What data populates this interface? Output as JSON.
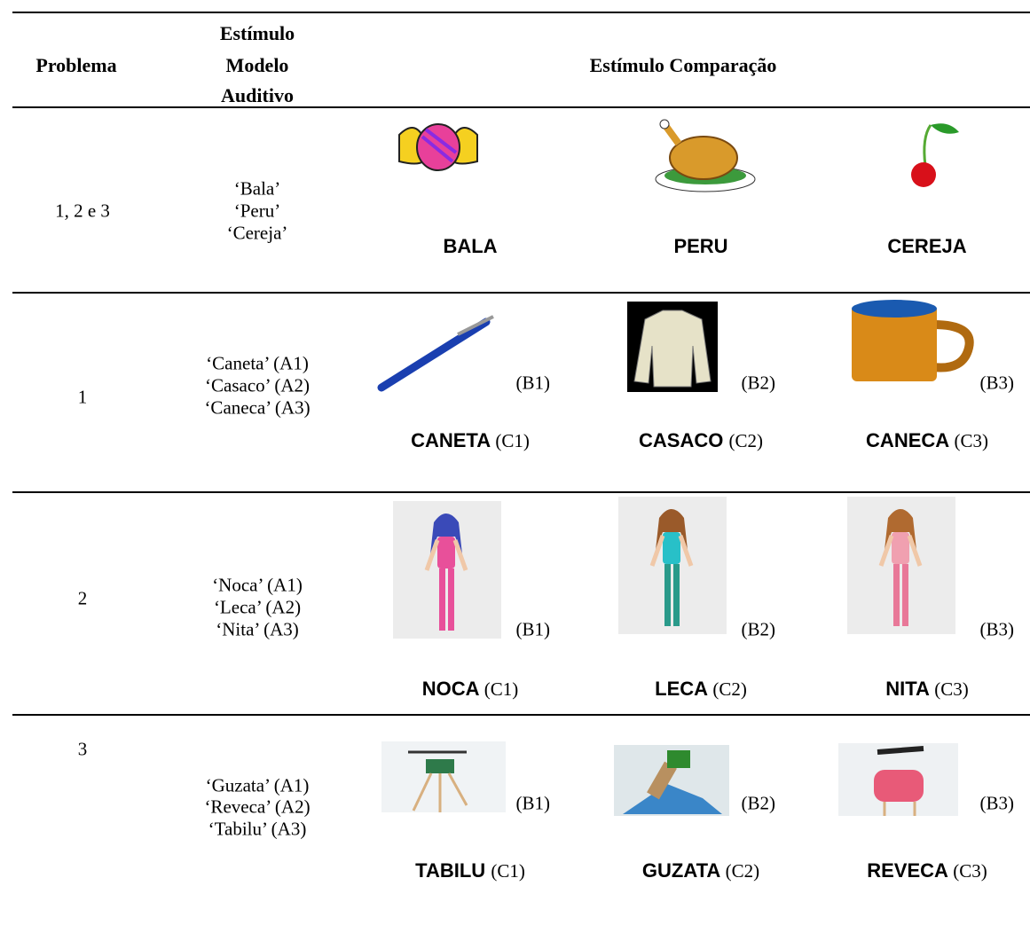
{
  "table": {
    "header": {
      "problem": "Problema",
      "model": [
        "Estímulo",
        "Modelo",
        "Auditivo"
      ],
      "comparison": "Estímulo Comparação"
    },
    "rows": [
      {
        "problem": "1, 2 e 3",
        "models": [
          "‘Bala’",
          "‘Peru’",
          "‘Cereja’"
        ],
        "comparisons": [
          {
            "word": "BALA"
          },
          {
            "word": "PERU"
          },
          {
            "word": "CEREJA"
          }
        ]
      },
      {
        "problem": "1",
        "models": [
          "‘Caneta’ (A1)",
          "‘Casaco’ (A2)",
          "‘Caneca’ (A3)"
        ],
        "comparisons": [
          {
            "picture_code": "(B1)",
            "word": "CANETA",
            "word_code": "(C1)"
          },
          {
            "picture_code": "(B2)",
            "word": "CASACO",
            "word_code": "(C2)"
          },
          {
            "picture_code": "(B3)",
            "word": "CANECA",
            "word_code": "(C3)"
          }
        ]
      },
      {
        "problem": "2",
        "models": [
          "‘Noca’ (A1)",
          "‘Leca’ (A2)",
          "‘Nita’ (A3)"
        ],
        "comparisons": [
          {
            "picture_code": "(B1)",
            "word": "NOCA",
            "word_code": "(C1)"
          },
          {
            "picture_code": "(B2)",
            "word": "LECA",
            "word_code": "(C2)"
          },
          {
            "picture_code": "(B3)",
            "word": "NITA",
            "word_code": "(C3)"
          }
        ]
      },
      {
        "problem": "3",
        "models": [
          "‘Guzata’ (A1)",
          "‘Reveca’ (A2)",
          "‘Tabilu’ (A3)"
        ],
        "comparisons": [
          {
            "picture_code": "(B1)",
            "word": "TABILU",
            "word_code": "(C1)"
          },
          {
            "picture_code": "(B2)",
            "word": "GUZATA",
            "word_code": "(C2)"
          },
          {
            "picture_code": "(B3)",
            "word": "REVECA",
            "word_code": "(C3)"
          }
        ]
      }
    ]
  }
}
